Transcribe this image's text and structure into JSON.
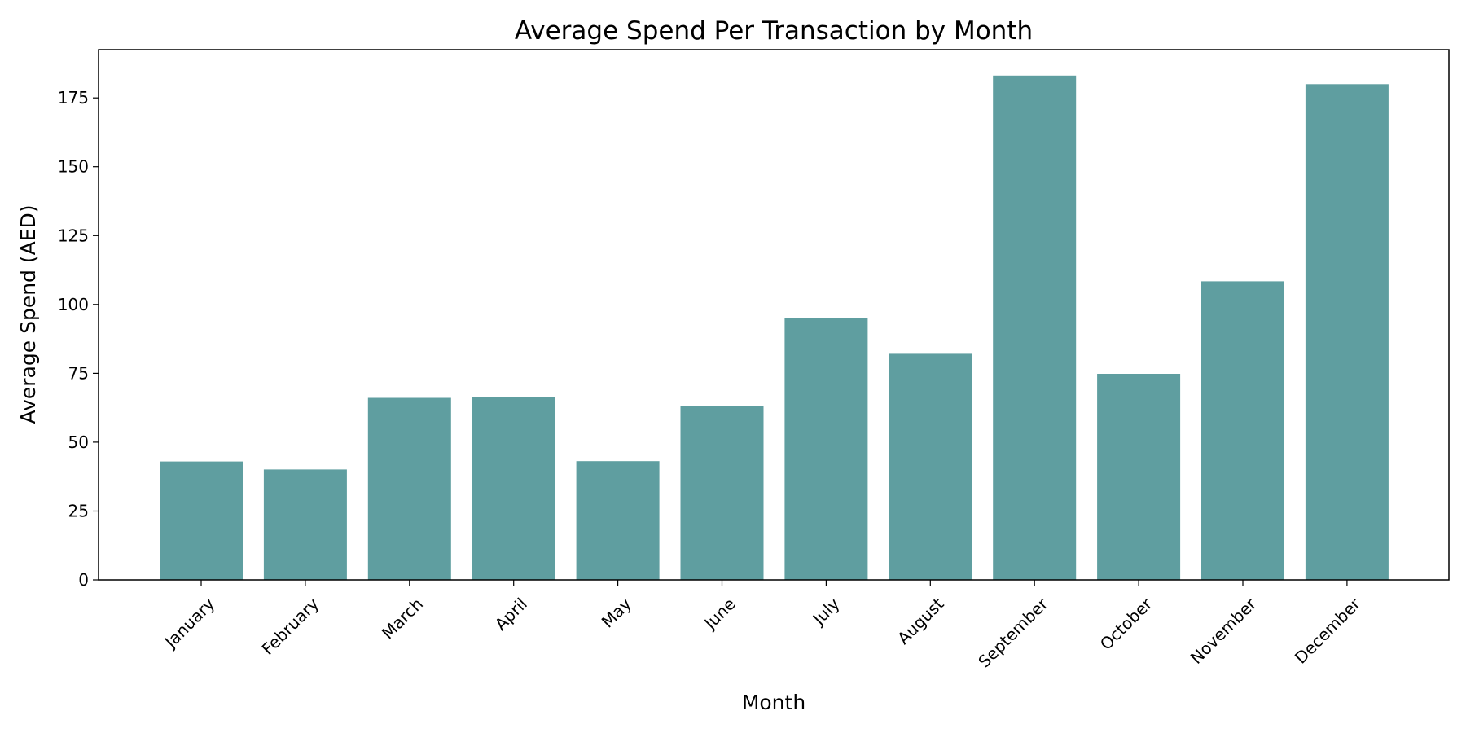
{
  "chart_data": {
    "type": "bar",
    "title": "Average Spend Per Transaction by Month",
    "xlabel": "Month",
    "ylabel": "Average Spend (AED)",
    "categories": [
      "January",
      "February",
      "March",
      "April",
      "May",
      "June",
      "July",
      "August",
      "September",
      "October",
      "November",
      "December"
    ],
    "values": [
      43.0,
      40.1,
      66.1,
      66.4,
      43.1,
      63.2,
      95.1,
      82.1,
      183.1,
      74.8,
      108.4,
      180.0
    ],
    "ylim": [
      0,
      192.5
    ],
    "yticks": [
      0,
      25,
      50,
      75,
      100,
      125,
      150,
      175
    ],
    "bar_color": "#5f9ea0",
    "grid": false,
    "legend": "none"
  }
}
